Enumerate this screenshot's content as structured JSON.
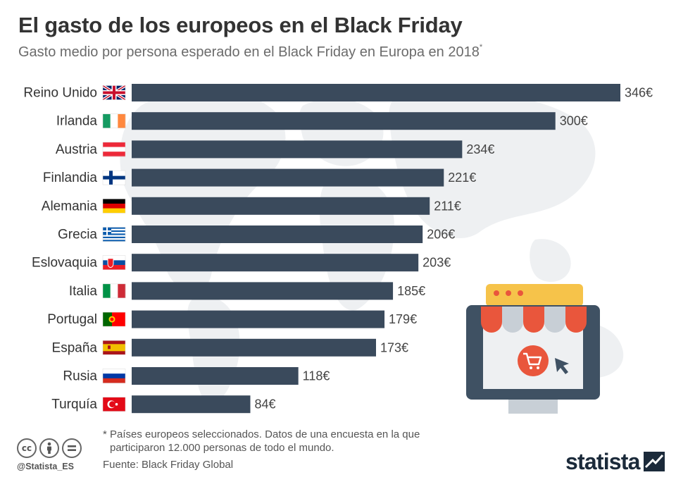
{
  "title": "El gasto de los europeos en el Black Friday",
  "subtitle": "Gasto medio por persona esperado en el Black Friday en Europa en 2018",
  "subtitle_marker": "*",
  "footnote_line1": "* Países europeos seleccionados. Datos de una encuesta en la que",
  "footnote_line2": "participaron 12.000 personas de todo el mundo.",
  "source": "Fuente: Black Friday Global",
  "handle": "@Statista_ES",
  "brand": "statista",
  "license_icons": [
    "cc-icon",
    "by-icon",
    "nd-icon"
  ],
  "colors": {
    "bar": "#3a4a5c",
    "title": "#333333",
    "subtitle": "#6b6b6b",
    "map": "#eef0f2"
  },
  "chart_data": {
    "type": "bar",
    "orientation": "horizontal",
    "title": "El gasto de los europeos en el Black Friday",
    "xlabel": "",
    "ylabel": "",
    "grid": false,
    "legend": "none",
    "value_suffix": "€",
    "categories": [
      "Reino Unido",
      "Irlanda",
      "Austria",
      "Finlandia",
      "Alemania",
      "Grecia",
      "Eslovaquia",
      "Italia",
      "Portugal",
      "España",
      "Rusia",
      "Turquía"
    ],
    "flags": [
      "uk",
      "ireland",
      "austria",
      "finland",
      "germany",
      "greece",
      "slovakia",
      "italy",
      "portugal",
      "spain",
      "russia",
      "turkey"
    ],
    "values": [
      346,
      300,
      234,
      221,
      211,
      206,
      203,
      185,
      179,
      173,
      118,
      84
    ],
    "value_labels": [
      "346€",
      "300€",
      "234€",
      "221€",
      "211€",
      "206€",
      "203€",
      "185€",
      "179€",
      "173€",
      "118€",
      "84€"
    ],
    "xlim": [
      0,
      346
    ]
  }
}
